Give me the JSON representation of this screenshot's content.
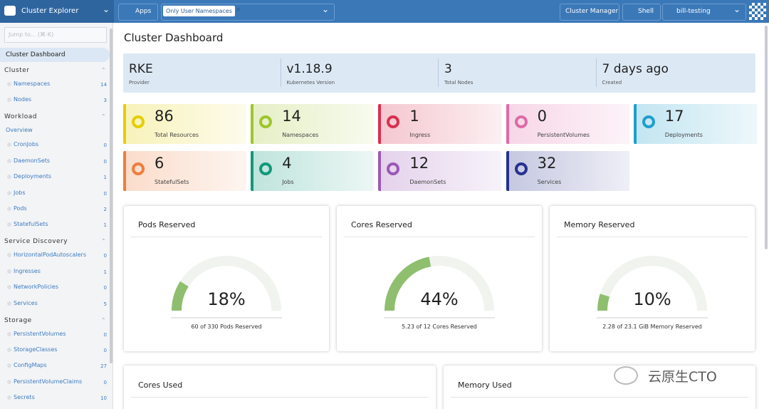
{
  "header": {
    "cluster_selector": "Cluster Explorer",
    "apps": "Apps",
    "filter_chip": "Only User Namespaces",
    "cluster_manager": "Cluster Manager",
    "shell": "Shell",
    "cluster_name": "bill-testing"
  },
  "sidebar": {
    "search_placeholder": "Jump to... (⌘-K)",
    "active": "Cluster Dashboard",
    "groups": [
      {
        "title": "Cluster",
        "items": [
          {
            "label": "Namespaces",
            "count": 14
          },
          {
            "label": "Nodes",
            "count": 3
          }
        ]
      },
      {
        "title": "Workload",
        "overview": "Overview",
        "items": [
          {
            "label": "CronJobs",
            "count": 0
          },
          {
            "label": "DaemonSets",
            "count": 0
          },
          {
            "label": "Deployments",
            "count": 1
          },
          {
            "label": "Jobs",
            "count": 0
          },
          {
            "label": "Pods",
            "count": 2
          },
          {
            "label": "StatefulSets",
            "count": 1
          }
        ]
      },
      {
        "title": "Service Discovery",
        "items": [
          {
            "label": "HorizontalPodAutoscalers",
            "count": 0
          },
          {
            "label": "Ingresses",
            "count": 1
          },
          {
            "label": "NetworkPolicies",
            "count": 0
          },
          {
            "label": "Services",
            "count": 5
          }
        ]
      },
      {
        "title": "Storage",
        "items": [
          {
            "label": "PersistentVolumes",
            "count": 0
          },
          {
            "label": "StorageClasses",
            "count": 0
          },
          {
            "label": "ConfigMaps",
            "count": 27
          },
          {
            "label": "PersistentVolumeClaims",
            "count": 0
          },
          {
            "label": "Secrets",
            "count": 10
          }
        ]
      }
    ]
  },
  "main": {
    "title": "Cluster Dashboard",
    "facts": [
      {
        "value": "RKE",
        "label": "Provider"
      },
      {
        "value": "v1.18.9",
        "label": "Kubernetes Version"
      },
      {
        "value": 3,
        "label": "Total Nodes"
      },
      {
        "value": "7 days ago",
        "label": "Created"
      }
    ],
    "resources": [
      {
        "count": 86,
        "label": "Total Resources",
        "color": "#e3cf00"
      },
      {
        "count": 14,
        "label": "Namespaces",
        "color": "#9fc52a"
      },
      {
        "count": 1,
        "label": "Ingress",
        "color": "#d8304f"
      },
      {
        "count": 0,
        "label": "PersistentVolumes",
        "color": "#df6aa7"
      },
      {
        "count": 17,
        "label": "Deployments",
        "color": "#1e9fcb"
      },
      {
        "count": 6,
        "label": "StatefulSets",
        "color": "#ee7e3d"
      },
      {
        "count": 4,
        "label": "Jobs",
        "color": "#10997b"
      },
      {
        "count": 12,
        "label": "DaemonSets",
        "color": "#9b59b6"
      },
      {
        "count": 32,
        "label": "Services",
        "color": "#27318f"
      }
    ],
    "gauges": [
      {
        "title": "Pods Reserved",
        "value": 18,
        "value_label": "18%",
        "detail": "60 of 330 Pods Reserved"
      },
      {
        "title": "Cores Reserved",
        "value": 44,
        "value_label": "44%",
        "detail": "5.23 of 12 Cores Reserved"
      },
      {
        "title": "Memory Reserved",
        "value": 10,
        "value_label": "10%",
        "detail": "2.28 of 23.1 GiB Memory Reserved"
      }
    ],
    "bottom_cards": [
      "Cores Used",
      "Memory Used"
    ]
  },
  "watermark": "云原生CTO"
}
